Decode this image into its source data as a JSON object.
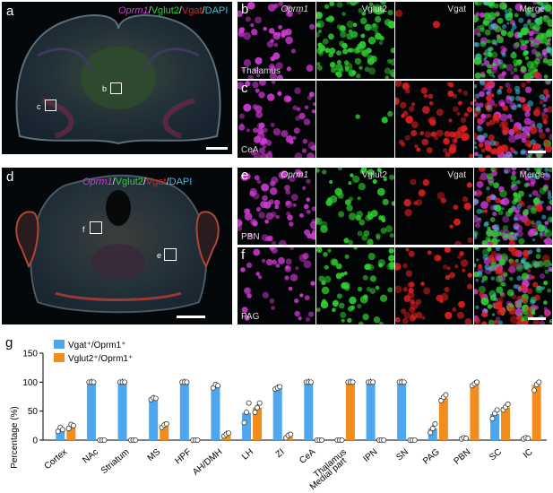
{
  "panel_letters": {
    "a": "a",
    "b": "b",
    "c": "c",
    "d": "d",
    "e": "e",
    "f": "f",
    "g": "g"
  },
  "overview_top_title": [
    "Oprm1",
    "/",
    "Vglut2",
    "/",
    "Vgat",
    "/",
    "DAPI"
  ],
  "overview_bottom_title": [
    "Oprm1",
    "/",
    "Vglut2",
    "/",
    "Vgat",
    "/",
    "DAPI"
  ],
  "overview_top_boxes": {
    "b": "b",
    "c": "c"
  },
  "overview_bottom_boxes": {
    "f": "f",
    "e": "e"
  },
  "rows": [
    {
      "region": "Thalamus",
      "channels": [
        "Oprm1",
        "Vglut2",
        "Vgat",
        "Merge"
      ]
    },
    {
      "region": "CeA",
      "channels": [
        "",
        "",
        "",
        ""
      ]
    },
    {
      "region": "PBN",
      "channels": [
        "Oprm1",
        "Vglut2",
        "Vgat",
        "Merge"
      ]
    },
    {
      "region": "PAG",
      "channels": [
        "",
        "",
        "",
        ""
      ]
    }
  ],
  "colors": {
    "oprm1": "#d23ad6",
    "vglut2": "#2fd02f",
    "vgat": "#e02020",
    "dapi": "#3fbfdc",
    "bar_vgat": "#4da6ee",
    "bar_vglut2": "#f28c1c"
  },
  "legend": {
    "vgat": "Vgat⁺/Oprm1⁺",
    "vglut2": "Vglut2⁺/Oprm1⁺"
  },
  "chart_data": {
    "type": "bar",
    "ylabel": "Percentage (%)",
    "ylim": [
      0,
      150
    ],
    "yticks": [
      0,
      50,
      100,
      150
    ],
    "categories": [
      "Cortex",
      "NAc",
      "Striatum",
      "MS",
      "HPF",
      "AH/DMH",
      "LH",
      "ZI",
      "CeA",
      "Thalamus Medial part",
      "IPN",
      "SN",
      "PAG",
      "PBN",
      "SC",
      "IC"
    ],
    "series": [
      {
        "name": "Vgat⁺/Oprm1⁺",
        "values": [
          18,
          100,
          100,
          72,
          100,
          93,
          47,
          90,
          100,
          0,
          100,
          100,
          20,
          3,
          45,
          3
        ],
        "points": [
          [
            15,
            22,
            18
          ],
          [
            100,
            100,
            100
          ],
          [
            100,
            100,
            100
          ],
          [
            70,
            73,
            72
          ],
          [
            100,
            100,
            100
          ],
          [
            90,
            96,
            94
          ],
          [
            30,
            48,
            64
          ],
          [
            88,
            90,
            92
          ],
          [
            100,
            100,
            100
          ],
          [
            0,
            0,
            0
          ],
          [
            100,
            100,
            100
          ],
          [
            100,
            100,
            100
          ],
          [
            13,
            20,
            28
          ],
          [
            2,
            4,
            3
          ],
          [
            37,
            46,
            52
          ],
          [
            2,
            4,
            3
          ]
        ]
      },
      {
        "name": "Vglut2⁺/Oprm1⁺",
        "values": [
          24,
          0,
          0,
          25,
          0,
          10,
          56,
          7,
          0,
          100,
          0,
          0,
          73,
          97,
          57,
          95
        ],
        "points": [
          [
            20,
            27,
            25
          ],
          [
            0,
            0,
            0
          ],
          [
            0,
            0,
            0
          ],
          [
            22,
            26,
            28
          ],
          [
            0,
            0,
            0
          ],
          [
            7,
            10,
            12
          ],
          [
            48,
            56,
            64
          ],
          [
            4,
            8,
            10
          ],
          [
            0,
            0,
            0
          ],
          [
            100,
            100,
            100
          ],
          [
            0,
            0,
            0
          ],
          [
            0,
            0,
            0
          ],
          [
            68,
            74,
            78
          ],
          [
            94,
            97,
            100
          ],
          [
            52,
            57,
            62
          ],
          [
            86,
            96,
            100
          ]
        ]
      }
    ]
  }
}
